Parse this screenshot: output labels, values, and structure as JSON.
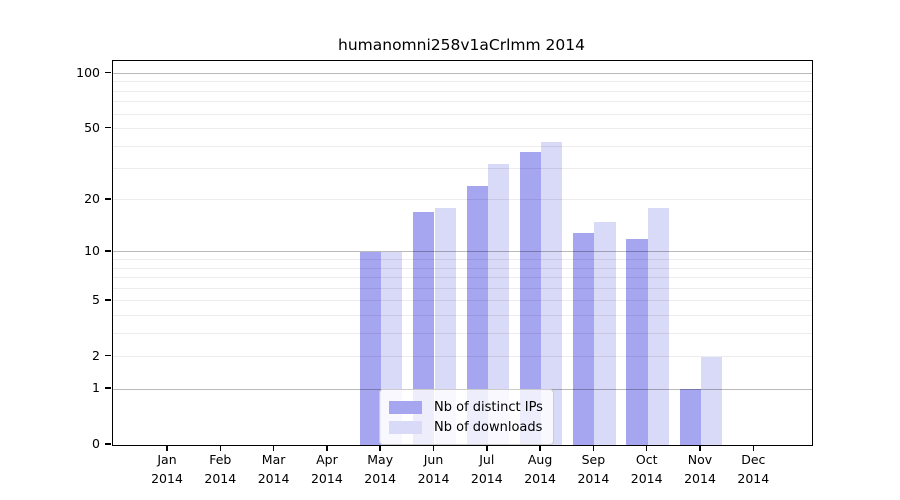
{
  "chart_data": {
    "type": "bar",
    "title": "humanomni258v1aCrlmm 2014",
    "year_label": "2014",
    "categories": [
      "Jan",
      "Feb",
      "Mar",
      "Apr",
      "May",
      "Jun",
      "Jul",
      "Aug",
      "Sep",
      "Oct",
      "Nov",
      "Dec"
    ],
    "series": [
      {
        "name": "Nb of distinct IPs",
        "color": "#a5a5f0",
        "values": [
          0,
          0,
          0,
          0,
          10,
          17,
          24,
          37,
          13,
          12,
          1,
          0
        ]
      },
      {
        "name": "Nb of downloads",
        "color": "#d9d9f8",
        "values": [
          0,
          0,
          0,
          0,
          10,
          18,
          32,
          42,
          15,
          18,
          2,
          0
        ]
      }
    ],
    "xlabel": "",
    "ylabel": "",
    "yscale": "log1p",
    "ylim": [
      0,
      117
    ],
    "yticks": [
      0,
      1,
      2,
      5,
      10,
      20,
      50,
      100
    ],
    "major_gridlines": [
      1,
      10,
      100
    ],
    "minor_gridlines": [
      2,
      3,
      4,
      5,
      6,
      7,
      8,
      9,
      20,
      30,
      40,
      50,
      60,
      70,
      80,
      90
    ],
    "grid": true,
    "legend_position": "bottom-center",
    "colors": {
      "major_grid": "rgba(0,0,0,0.27)",
      "minor_grid": "rgba(0,0,0,0.075)",
      "axis": "#000000",
      "legend_border": "#cccccc",
      "legend_background": "rgba(255,255,255,0.8)"
    }
  }
}
